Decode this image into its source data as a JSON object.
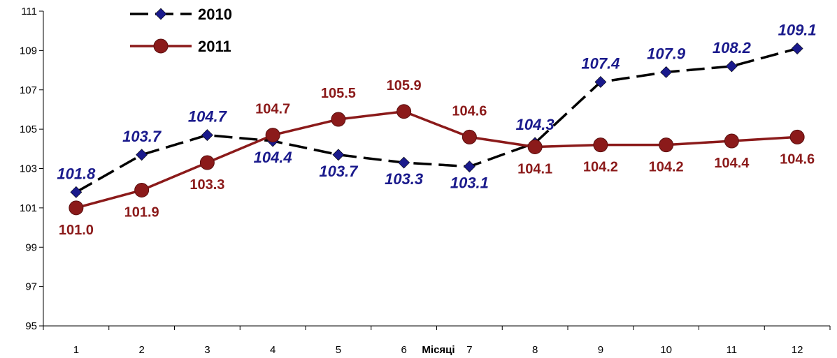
{
  "chart_data": {
    "type": "line",
    "categories": [
      "1",
      "2",
      "3",
      "4",
      "5",
      "6",
      "7",
      "8",
      "9",
      "10",
      "11",
      "12"
    ],
    "xlabel": "Місяці",
    "ylim": [
      95,
      111
    ],
    "yticks": [
      95,
      97,
      99,
      101,
      103,
      105,
      107,
      109,
      111
    ],
    "grid": false,
    "legend_position": "top-left",
    "series": [
      {
        "name": "2010",
        "values": [
          101.8,
          103.7,
          104.7,
          104.4,
          103.7,
          103.3,
          103.1,
          104.3,
          107.4,
          107.9,
          108.2,
          109.1
        ],
        "labels": [
          "101.8",
          "103.7",
          "104.7",
          "104.4",
          "103.7",
          "103.3",
          "103.1",
          "104.3",
          "107.4",
          "107.9",
          "108.2",
          "109.1"
        ],
        "color": "#000000",
        "marker_color": "#1a1a8c",
        "label_color": "#1a1a8c",
        "line_style": "dashed",
        "marker": "diamond"
      },
      {
        "name": "2011",
        "values": [
          101.0,
          101.9,
          103.3,
          104.7,
          105.5,
          105.9,
          104.6,
          104.1,
          104.2,
          104.2,
          104.4,
          104.6
        ],
        "labels": [
          "101.0",
          "101.9",
          "103.3",
          "104.7",
          "105.5",
          "105.9",
          "104.6",
          "104.1",
          "104.2",
          "104.2",
          "104.4",
          "104.6"
        ],
        "color": "#8b1a1a",
        "marker_color": "#8b1a1a",
        "label_color": "#8b1a1a",
        "line_style": "solid",
        "marker": "circle"
      }
    ]
  }
}
